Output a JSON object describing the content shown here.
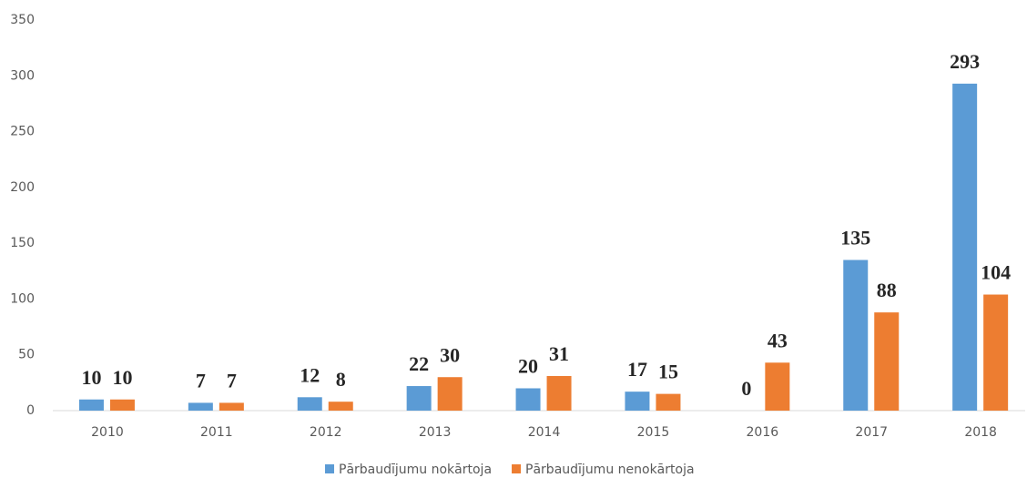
{
  "chart_data": {
    "type": "bar",
    "categories": [
      "2010",
      "2011",
      "2012",
      "2013",
      "2014",
      "2015",
      "2016",
      "2017",
      "2018"
    ],
    "series": [
      {
        "name": "Pārbaudījumu nokārtoja",
        "color": "#5b9bd5",
        "values": [
          10,
          7,
          12,
          22,
          20,
          17,
          0,
          135,
          293
        ]
      },
      {
        "name": "Pārbaudījumu nenokārtoja",
        "color": "#ed7d31",
        "values": [
          10,
          7,
          8,
          30,
          31,
          15,
          43,
          88,
          104
        ]
      }
    ],
    "ylim": [
      0,
      350
    ],
    "yticks": [
      0,
      50,
      100,
      150,
      200,
      250,
      300,
      350
    ],
    "grid": false,
    "legend": "bottom"
  }
}
